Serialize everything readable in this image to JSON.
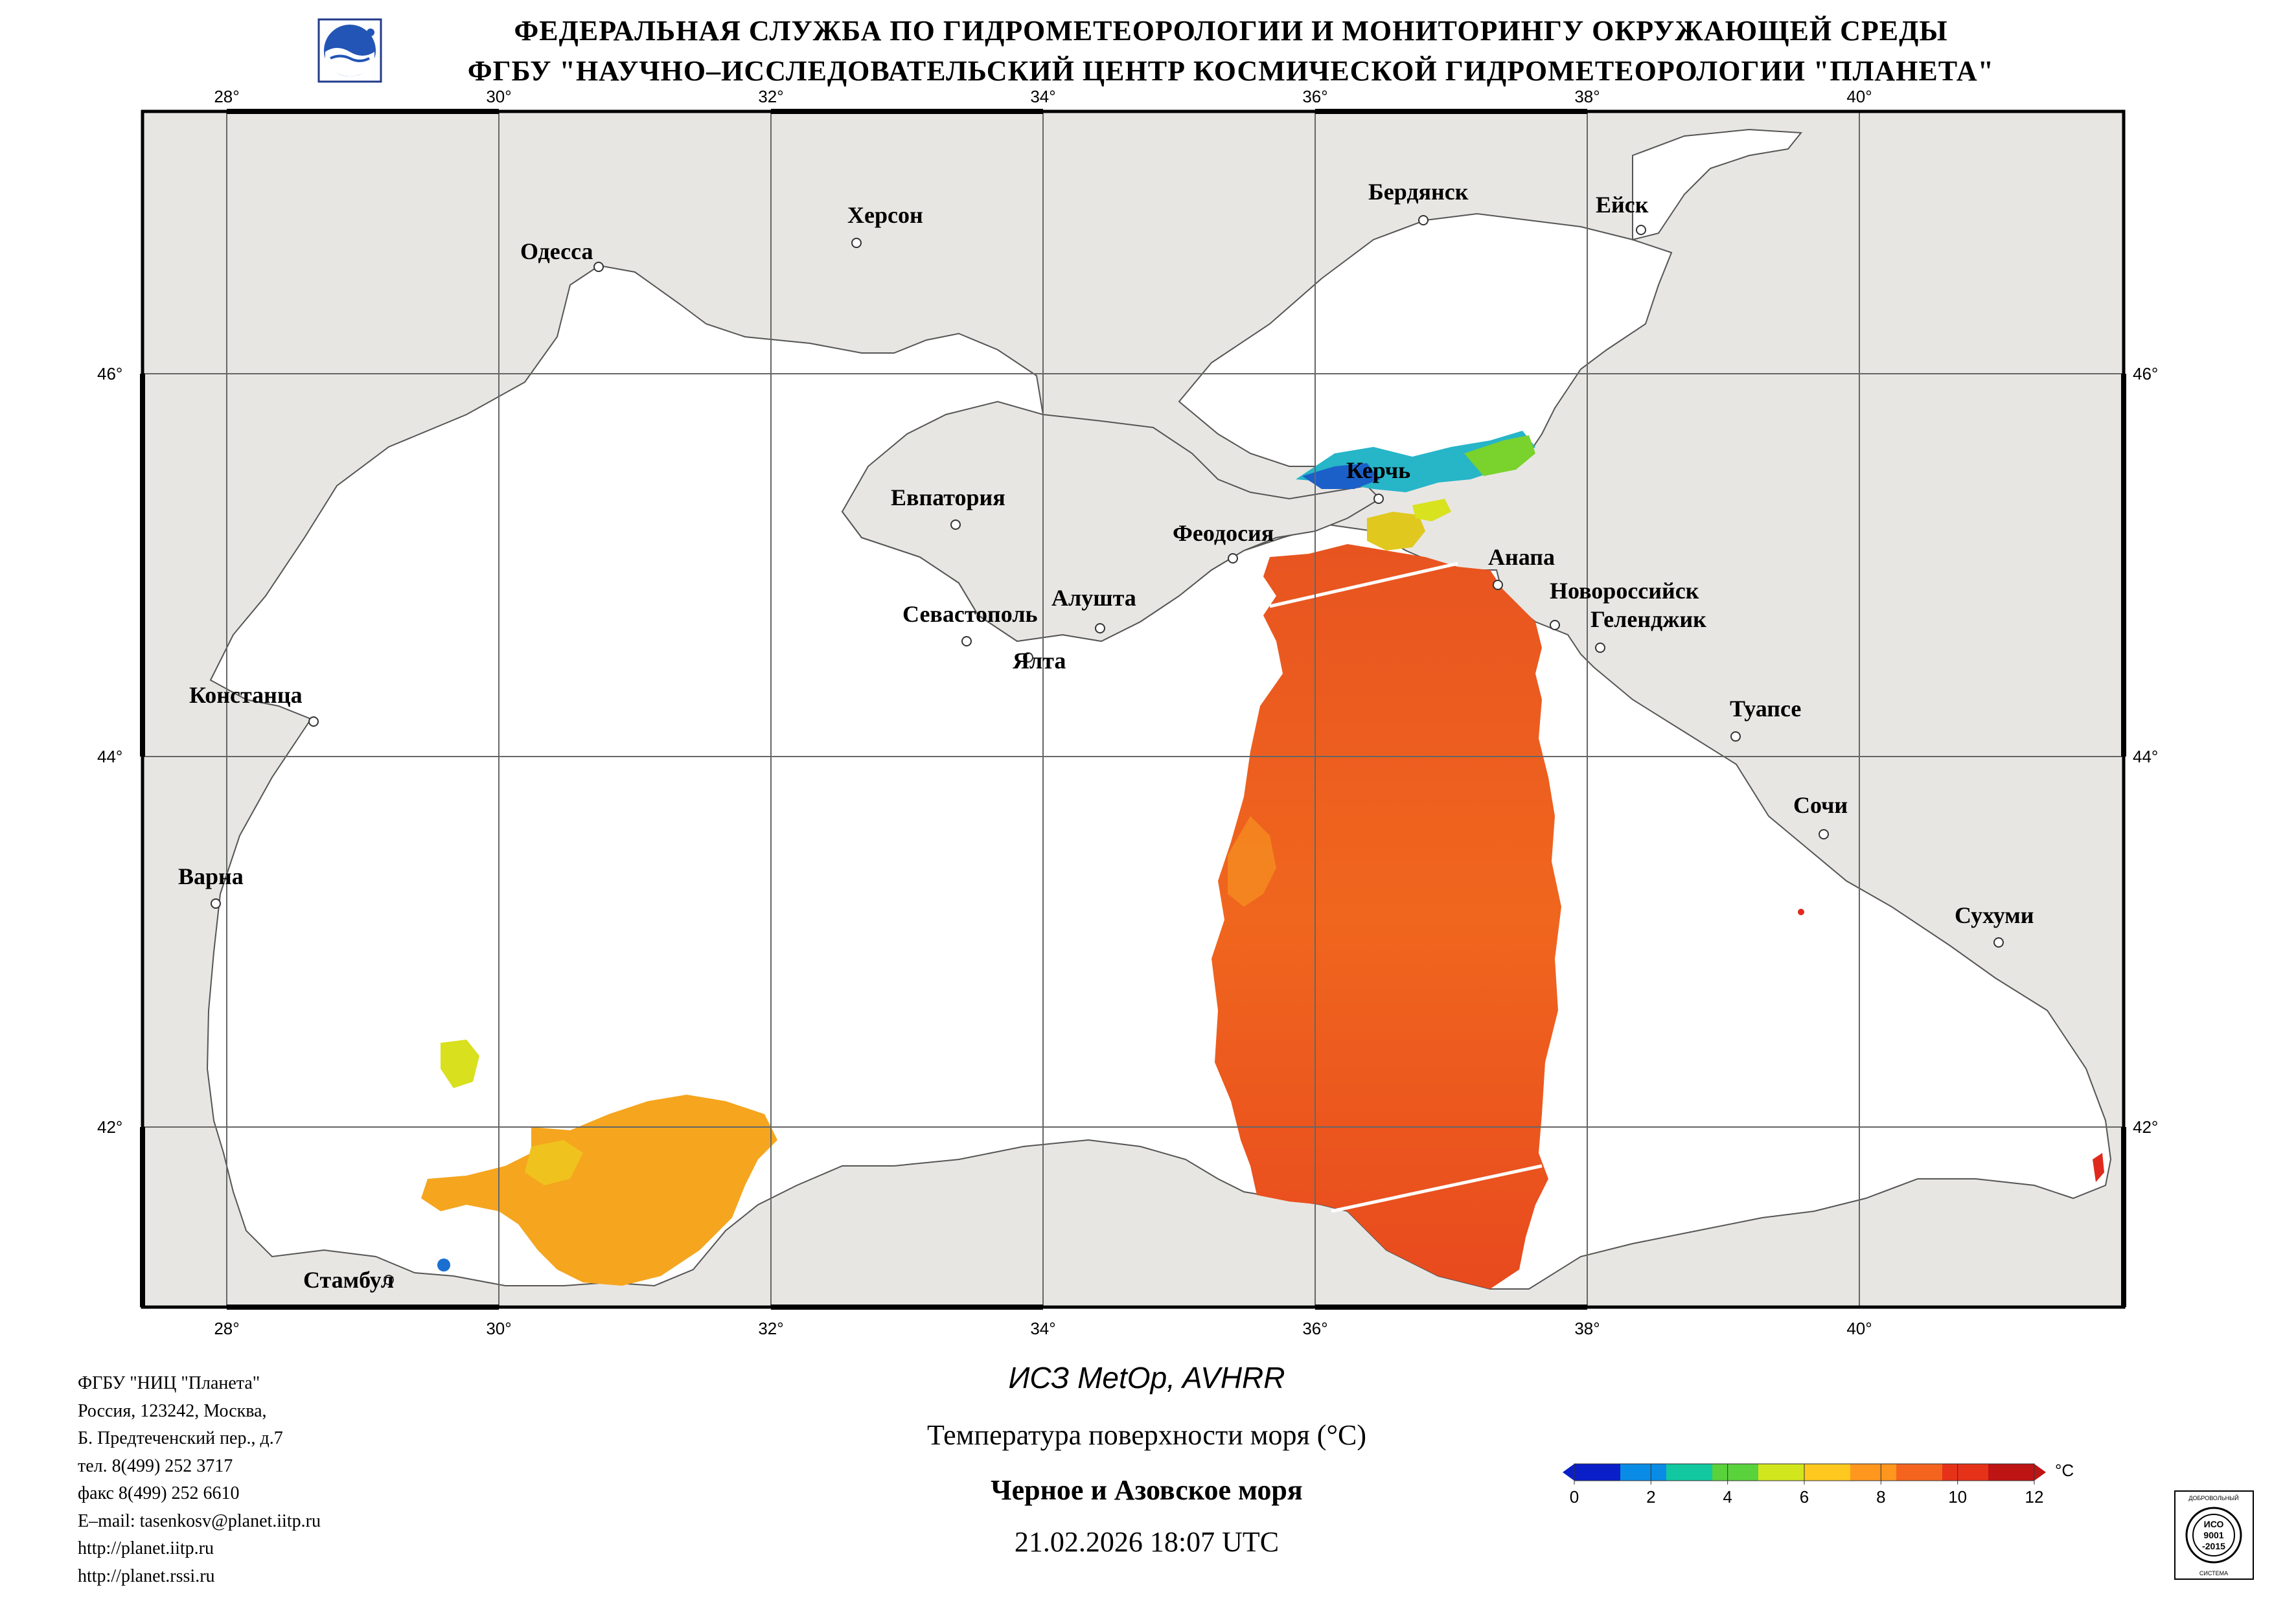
{
  "header": {
    "line1": "ФЕДЕРАЛЬНАЯ СЛУЖБА ПО ГИДРОМЕТЕОРОЛОГИИ И МОНИТОРИНГУ ОКРУЖАЮЩЕЙ СРЕДЫ",
    "line2": "ФГБУ \"НАУЧНО–ИССЛЕДОВАТЕЛЬСКИЙ ЦЕНТР КОСМИЧЕСКОЙ ГИДРОМЕТЕОРОЛОГИИ \"ПЛАНЕТА\"",
    "logo_icon": "planeta-globe-icon"
  },
  "map": {
    "lon_labels": [
      "28°",
      "30°",
      "32°",
      "34°",
      "36°",
      "38°",
      "40°"
    ],
    "lat_labels": [
      "46°",
      "44°",
      "42°"
    ],
    "cities": [
      "Бердянск",
      "Ейск",
      "Херсон",
      "Одесса",
      "Керчь",
      "Евпатория",
      "Феодосия",
      "Анапа",
      "Новороссийск",
      "Геленджик",
      "Алушта",
      "Севастополь",
      "Ялта",
      "Констанца",
      "Туапсе",
      "Сочи",
      "Варна",
      "Сухуми",
      "Стамбул"
    ],
    "colors": {
      "land": "#e8e6e3",
      "sea": "#ffffff",
      "coast": "#555555",
      "grid": "#666666"
    }
  },
  "info": {
    "lines": [
      "ФГБУ \"НИЦ \"Планета\"",
      "Россия, 123242, Москва,",
      "Б. Предтеченский пер., д.7",
      "тел. 8(499) 252 3717",
      "факс 8(499) 252 6610",
      "E–mail: tasenkosv@planet.iitp.ru",
      "http://planet.iitp.ru",
      "http://planet.rssi.ru"
    ]
  },
  "caption": {
    "satellite": "ИСЗ MetOp, AVHRR",
    "parameter": "Температура поверхности моря (°C)",
    "region": "Черное и Азовское моря",
    "datetime": "21.02.2026 18:07 UTC"
  },
  "legend": {
    "unit": "°C",
    "ticks": [
      "0",
      "2",
      "4",
      "6",
      "8",
      "10",
      "12"
    ],
    "colors": [
      "#0a1fc8",
      "#0a8ce6",
      "#12c8a0",
      "#5ad23c",
      "#d2e61e",
      "#ffc81e",
      "#ff961e",
      "#f5641e",
      "#e63219",
      "#be1414"
    ]
  },
  "certificate": {
    "top": "ДОБРОВОЛЬНЫЙ",
    "line1": "ИСО",
    "line2": "9001",
    "line3": "-2015",
    "bottom": "СИСТЕМА"
  }
}
